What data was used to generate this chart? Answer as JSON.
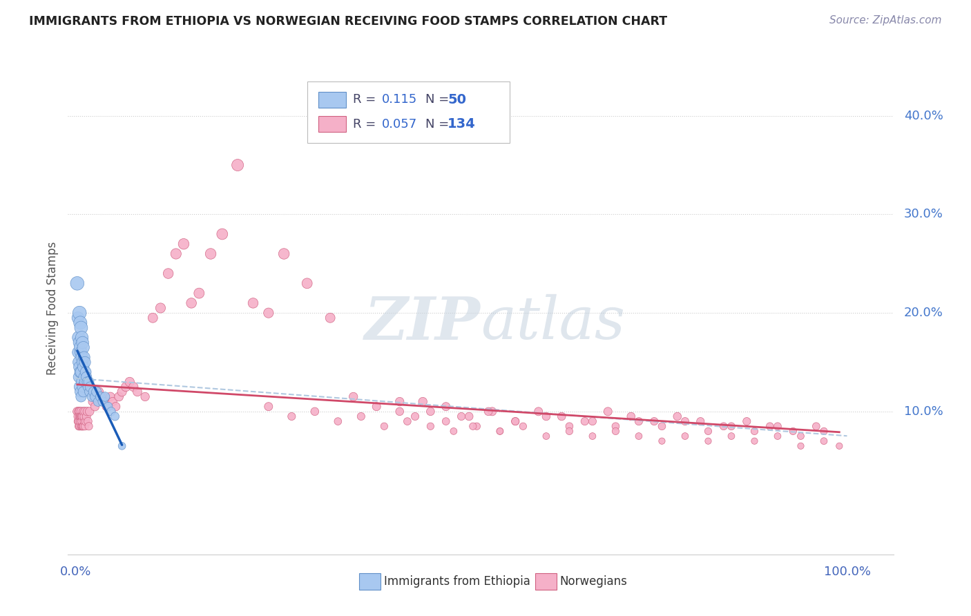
{
  "title": "IMMIGRANTS FROM ETHIOPIA VS NORWEGIAN RECEIVING FOOD STAMPS CORRELATION CHART",
  "source_text": "Source: ZipAtlas.com",
  "ylabel": "Receiving Food Stamps",
  "ytick_labels": [
    "10.0%",
    "20.0%",
    "30.0%",
    "40.0%"
  ],
  "ytick_positions": [
    0.1,
    0.2,
    0.3,
    0.4
  ],
  "xlim": [
    -0.01,
    1.06
  ],
  "ylim": [
    -0.045,
    0.455
  ],
  "legend_r_ethiopia": "0.115",
  "legend_n_ethiopia": "50",
  "legend_r_norwegian": "0.057",
  "legend_n_norwegian": "134",
  "ethiopia_color": "#a8c8f0",
  "ethiopian_dot_edge": "#6090c8",
  "norwegian_color": "#f5b0c8",
  "norwegian_dot_edge": "#d06080",
  "trend_ethiopia_color": "#1a5cb8",
  "trend_norwegian_color": "#d04868",
  "trend_overall_color": "#b0c8e0",
  "watermark_color": "#d0dce8",
  "ethiopia_x": [
    0.002,
    0.003,
    0.003,
    0.004,
    0.004,
    0.004,
    0.005,
    0.005,
    0.005,
    0.005,
    0.006,
    0.006,
    0.006,
    0.006,
    0.007,
    0.007,
    0.007,
    0.007,
    0.008,
    0.008,
    0.008,
    0.009,
    0.009,
    0.009,
    0.01,
    0.01,
    0.01,
    0.011,
    0.011,
    0.012,
    0.012,
    0.013,
    0.014,
    0.015,
    0.016,
    0.017,
    0.018,
    0.019,
    0.021,
    0.023,
    0.025,
    0.027,
    0.029,
    0.032,
    0.035,
    0.038,
    0.042,
    0.046,
    0.051,
    0.06
  ],
  "ethiopia_y": [
    0.23,
    0.195,
    0.16,
    0.175,
    0.15,
    0.135,
    0.2,
    0.17,
    0.145,
    0.125,
    0.19,
    0.165,
    0.14,
    0.12,
    0.185,
    0.16,
    0.14,
    0.115,
    0.175,
    0.155,
    0.13,
    0.17,
    0.15,
    0.125,
    0.165,
    0.145,
    0.12,
    0.155,
    0.135,
    0.15,
    0.13,
    0.14,
    0.135,
    0.13,
    0.125,
    0.13,
    0.12,
    0.125,
    0.115,
    0.12,
    0.115,
    0.12,
    0.11,
    0.115,
    0.11,
    0.115,
    0.105,
    0.1,
    0.095,
    0.065
  ],
  "ethiopia_size": [
    200,
    160,
    140,
    180,
    150,
    130,
    200,
    170,
    150,
    130,
    190,
    165,
    145,
    125,
    185,
    160,
    140,
    120,
    175,
    155,
    135,
    160,
    145,
    125,
    155,
    140,
    120,
    145,
    130,
    140,
    125,
    130,
    120,
    115,
    110,
    115,
    105,
    110,
    100,
    105,
    100,
    105,
    95,
    100,
    95,
    95,
    85,
    80,
    75,
    60
  ],
  "norwegian_x": [
    0.002,
    0.003,
    0.003,
    0.004,
    0.004,
    0.004,
    0.005,
    0.005,
    0.005,
    0.006,
    0.006,
    0.007,
    0.007,
    0.007,
    0.008,
    0.008,
    0.008,
    0.009,
    0.009,
    0.01,
    0.01,
    0.011,
    0.011,
    0.012,
    0.012,
    0.013,
    0.014,
    0.015,
    0.016,
    0.017,
    0.018,
    0.02,
    0.022,
    0.025,
    0.027,
    0.03,
    0.032,
    0.035,
    0.038,
    0.04,
    0.045,
    0.048,
    0.052,
    0.056,
    0.06,
    0.065,
    0.07,
    0.075,
    0.08,
    0.09,
    0.1,
    0.11,
    0.12,
    0.13,
    0.14,
    0.15,
    0.16,
    0.175,
    0.19,
    0.21,
    0.23,
    0.25,
    0.27,
    0.3,
    0.33,
    0.36,
    0.39,
    0.42,
    0.45,
    0.48,
    0.51,
    0.54,
    0.57,
    0.6,
    0.63,
    0.66,
    0.69,
    0.72,
    0.75,
    0.78,
    0.81,
    0.84,
    0.87,
    0.9,
    0.93,
    0.96,
    0.42,
    0.46,
    0.5,
    0.535,
    0.57,
    0.61,
    0.64,
    0.67,
    0.7,
    0.73,
    0.76,
    0.79,
    0.82,
    0.85,
    0.88,
    0.91,
    0.94,
    0.97,
    0.25,
    0.28,
    0.31,
    0.34,
    0.37,
    0.4,
    0.43,
    0.46,
    0.49,
    0.52,
    0.55,
    0.58,
    0.61,
    0.64,
    0.67,
    0.7,
    0.73,
    0.76,
    0.79,
    0.82,
    0.85,
    0.88,
    0.91,
    0.94,
    0.97,
    0.99,
    0.44,
    0.48,
    0.515,
    0.55
  ],
  "norwegian_y": [
    0.1,
    0.09,
    0.095,
    0.1,
    0.085,
    0.09,
    0.1,
    0.085,
    0.095,
    0.09,
    0.095,
    0.1,
    0.085,
    0.095,
    0.095,
    0.085,
    0.09,
    0.095,
    0.085,
    0.1,
    0.085,
    0.09,
    0.095,
    0.085,
    0.1,
    0.09,
    0.095,
    0.1,
    0.09,
    0.085,
    0.1,
    0.12,
    0.11,
    0.105,
    0.115,
    0.12,
    0.11,
    0.115,
    0.11,
    0.105,
    0.115,
    0.11,
    0.105,
    0.115,
    0.12,
    0.125,
    0.13,
    0.125,
    0.12,
    0.115,
    0.195,
    0.205,
    0.24,
    0.26,
    0.27,
    0.21,
    0.22,
    0.26,
    0.28,
    0.35,
    0.21,
    0.2,
    0.26,
    0.23,
    0.195,
    0.115,
    0.105,
    0.1,
    0.11,
    0.105,
    0.095,
    0.1,
    0.09,
    0.1,
    0.095,
    0.09,
    0.1,
    0.095,
    0.09,
    0.095,
    0.09,
    0.085,
    0.09,
    0.085,
    0.08,
    0.085,
    0.11,
    0.1,
    0.095,
    0.1,
    0.09,
    0.095,
    0.085,
    0.09,
    0.085,
    0.09,
    0.085,
    0.09,
    0.08,
    0.085,
    0.08,
    0.085,
    0.075,
    0.08,
    0.105,
    0.095,
    0.1,
    0.09,
    0.095,
    0.085,
    0.09,
    0.085,
    0.08,
    0.085,
    0.08,
    0.085,
    0.075,
    0.08,
    0.075,
    0.08,
    0.075,
    0.07,
    0.075,
    0.07,
    0.075,
    0.07,
    0.075,
    0.065,
    0.07,
    0.065,
    0.095,
    0.09,
    0.085,
    0.08
  ],
  "norwegian_size": [
    80,
    70,
    75,
    80,
    65,
    70,
    80,
    65,
    75,
    70,
    75,
    80,
    65,
    75,
    75,
    65,
    70,
    75,
    65,
    80,
    65,
    70,
    75,
    65,
    80,
    70,
    75,
    80,
    70,
    65,
    80,
    90,
    80,
    80,
    85,
    90,
    80,
    85,
    80,
    80,
    85,
    80,
    80,
    85,
    90,
    90,
    95,
    90,
    85,
    80,
    100,
    105,
    110,
    120,
    125,
    110,
    115,
    125,
    130,
    150,
    110,
    105,
    125,
    115,
    100,
    80,
    75,
    70,
    80,
    75,
    70,
    75,
    65,
    75,
    70,
    65,
    75,
    70,
    65,
    70,
    65,
    60,
    65,
    60,
    55,
    60,
    80,
    70,
    65,
    70,
    65,
    70,
    60,
    65,
    60,
    65,
    60,
    65,
    55,
    60,
    55,
    60,
    50,
    55,
    75,
    65,
    70,
    60,
    65,
    55,
    60,
    55,
    50,
    55,
    50,
    55,
    50,
    55,
    50,
    55,
    50,
    45,
    50,
    45,
    50,
    45,
    50,
    45,
    50,
    45,
    65,
    60,
    55,
    50
  ]
}
